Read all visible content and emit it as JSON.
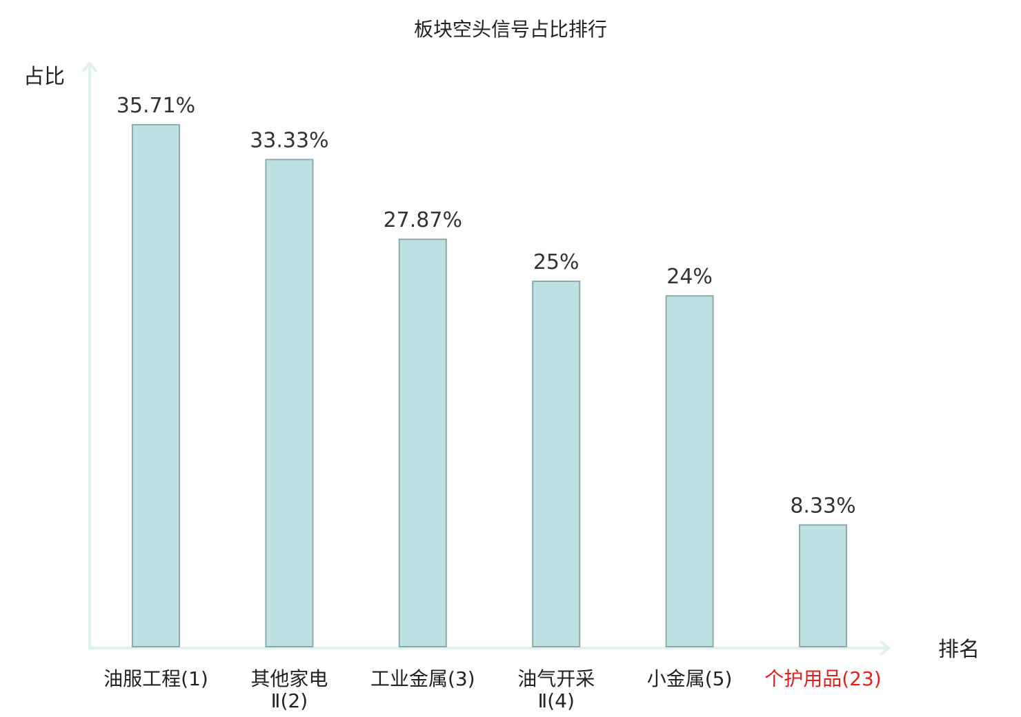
{
  "chart_data": {
    "type": "bar",
    "title": "板块空头信号占比排行",
    "xlabel": "排名",
    "ylabel": "占比",
    "ylim": [
      0,
      40
    ],
    "grid": false,
    "categories": [
      [
        "油服工程(1)"
      ],
      [
        "其他家电",
        "Ⅱ(2)"
      ],
      [
        "工业金属(3)"
      ],
      [
        "油气开采",
        "Ⅱ(4)"
      ],
      [
        "小金属(5)"
      ],
      [
        "个护用品(23)"
      ]
    ],
    "values": [
      35.71,
      33.33,
      27.87,
      25,
      24,
      8.33
    ],
    "value_labels": [
      "35.71%",
      "33.33%",
      "27.87%",
      "25%",
      "24%",
      "8.33%"
    ],
    "highlight_index": 5
  },
  "colors": {
    "bar_fill": "#bde0e3",
    "bar_stroke": "#8fa9ab",
    "axis": "#dff2ef",
    "text": "#222222",
    "value_text": "#333333",
    "highlight_text": "#e02020"
  }
}
